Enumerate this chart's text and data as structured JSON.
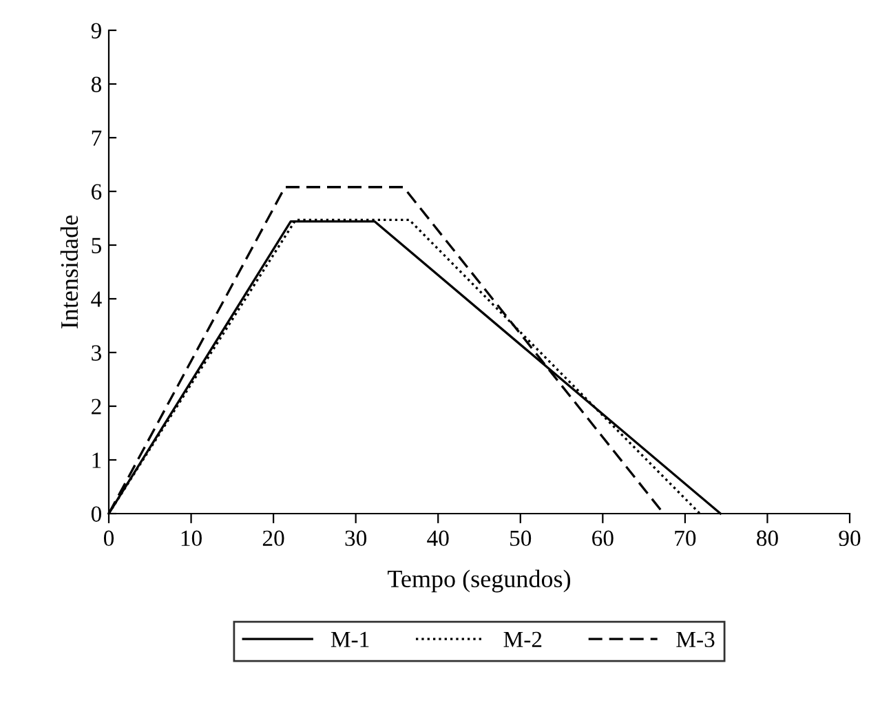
{
  "chart_data": {
    "type": "line",
    "xlabel": "Tempo (segundos)",
    "ylabel": "Intensidade",
    "xlim": [
      0,
      90
    ],
    "xticks": [
      0,
      10,
      20,
      30,
      40,
      50,
      60,
      70,
      80,
      90
    ],
    "ylim": [
      0,
      9
    ],
    "yticks": [
      0,
      1,
      2,
      3,
      4,
      5,
      6,
      7,
      8,
      9
    ],
    "grid": false,
    "legend": "bottom",
    "marker": "none",
    "series": [
      {
        "name": "M-1",
        "color": "#000000",
        "line_style": "solid",
        "x": [
          0,
          22.1,
          32.3,
          74.3
        ],
        "values": [
          0,
          5.44,
          5.44,
          0
        ]
      },
      {
        "name": "M-2",
        "color": "#000000",
        "line_style": "dotted",
        "x": [
          0,
          22.7,
          36.5,
          71.8
        ],
        "values": [
          0,
          5.47,
          5.47,
          0
        ]
      },
      {
        "name": "M-3",
        "color": "#000000",
        "line_style": "dashed",
        "x": [
          0,
          21.4,
          35.8,
          67.4
        ],
        "values": [
          0,
          6.08,
          6.08,
          0
        ]
      }
    ]
  }
}
